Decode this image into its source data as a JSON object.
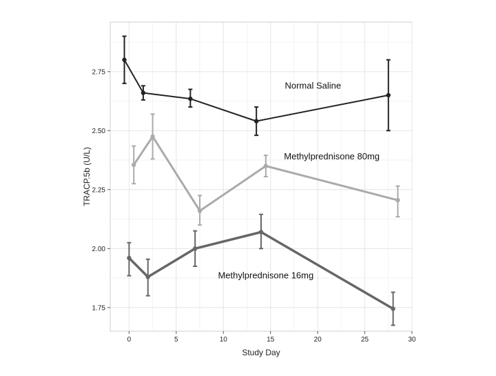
{
  "chart_data": {
    "type": "line",
    "title": "",
    "xlabel": "Study Day",
    "ylabel": "TRACP.5b (U/L)",
    "xlim": [
      -2,
      30
    ],
    "ylim": [
      1.65,
      2.96
    ],
    "x_ticks": [
      0,
      5,
      10,
      15,
      20,
      25,
      30
    ],
    "x_tick_labels": [
      "0",
      "5",
      "10",
      "15",
      "20",
      "25",
      "30"
    ],
    "y_ticks": [
      1.75,
      2.0,
      2.25,
      2.5,
      2.75
    ],
    "y_tick_labels": [
      "1.75",
      "2.00",
      "2.25",
      "2.50",
      "2.75"
    ],
    "grid": true,
    "legend": "direct-labels",
    "series": [
      {
        "name": "Normal Saline",
        "color": "#222222",
        "x": [
          -0.5,
          1.5,
          6.5,
          13.5,
          27.5
        ],
        "y": [
          2.8,
          2.66,
          2.635,
          2.54,
          2.65
        ],
        "err_low": [
          2.7,
          2.63,
          2.6,
          2.48,
          2.5
        ],
        "err_high": [
          2.9,
          2.69,
          2.675,
          2.6,
          2.8
        ]
      },
      {
        "name": "Methylprednisone 80mg",
        "color": "#aaaaaa",
        "x": [
          0.5,
          2.5,
          7.5,
          14.5,
          28.5
        ],
        "y": [
          2.355,
          2.475,
          2.16,
          2.35,
          2.205
        ],
        "err_low": [
          2.275,
          2.38,
          2.1,
          2.305,
          2.135
        ],
        "err_high": [
          2.435,
          2.57,
          2.225,
          2.395,
          2.265
        ]
      },
      {
        "name": "Methylprednisone 16mg",
        "color": "#666666",
        "x": [
          0,
          2,
          7,
          14,
          28
        ],
        "y": [
          1.96,
          1.88,
          2.0,
          2.07,
          1.745
        ],
        "err_low": [
          1.885,
          1.8,
          1.925,
          2.0,
          1.675
        ],
        "err_high": [
          2.025,
          1.955,
          2.075,
          2.145,
          1.815
        ]
      }
    ],
    "annotations": [
      {
        "text": "Normal Saline",
        "x": 19.5,
        "y": 2.69
      },
      {
        "text": "Methylprednisone 80mg",
        "x": 21.5,
        "y": 2.39
      },
      {
        "text": "Methylprednisone 16mg",
        "x": 14.5,
        "y": 1.885
      }
    ]
  }
}
